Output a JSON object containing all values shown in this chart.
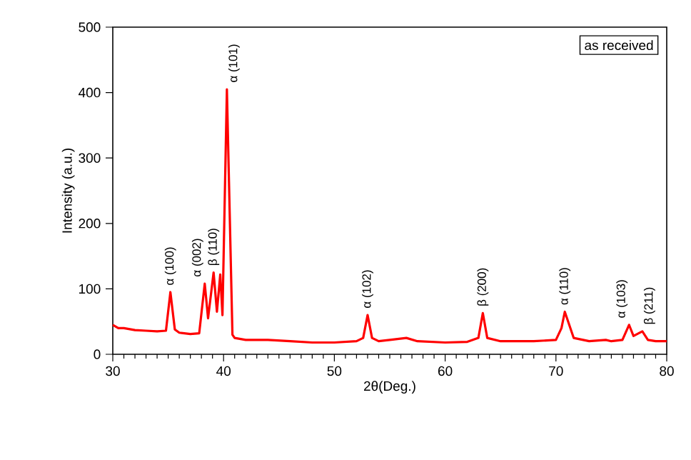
{
  "chart_data": {
    "type": "line",
    "xlabel": "2θ(Deg.)",
    "ylabel": "Intensity (a.u.)",
    "xlim": [
      30,
      80
    ],
    "xticks": [
      30,
      40,
      50,
      60,
      70,
      80
    ],
    "ylim": [
      0,
      500
    ],
    "yticks": [
      0,
      100,
      200,
      300,
      400,
      500
    ],
    "series": [
      {
        "color": "#ff0000",
        "x": [
          30,
          30.5,
          31,
          32,
          33,
          34,
          34.8,
          35.2,
          35.6,
          36,
          37,
          37.8,
          38.3,
          38.6,
          39.1,
          39.4,
          39.7,
          39.9,
          40.3,
          40.8,
          41,
          42,
          44,
          46,
          48,
          50,
          52,
          52.6,
          53,
          53.4,
          54,
          55,
          56.5,
          57.5,
          60,
          62,
          63,
          63.4,
          63.8,
          65,
          68,
          70,
          70.5,
          70.8,
          71.2,
          71.6,
          73,
          74.5,
          75,
          76,
          76.6,
          77,
          77.8,
          78.3,
          79,
          80
        ],
        "values": [
          45,
          40,
          40,
          37,
          36,
          35,
          36,
          95,
          38,
          33,
          31,
          32,
          108,
          55,
          125,
          65,
          122,
          60,
          405,
          30,
          25,
          22,
          22,
          20,
          18,
          18,
          20,
          25,
          60,
          25,
          20,
          22,
          25,
          20,
          18,
          19,
          25,
          63,
          25,
          20,
          20,
          22,
          40,
          65,
          45,
          25,
          20,
          22,
          20,
          22,
          45,
          28,
          35,
          22,
          20,
          20
        ]
      }
    ],
    "annotations": [
      "as received",
      {
        "text": "α (100)",
        "x": 35.2,
        "y": 95
      },
      {
        "text": "α (002)",
        "x": 38.3,
        "y": 108
      },
      {
        "text": "β (110)",
        "x": 39.1,
        "y": 125
      },
      {
        "text": "α (101)",
        "x": 40.3,
        "y": 405
      },
      {
        "text": "α (102)",
        "x": 53,
        "y": 60
      },
      {
        "text": "β (200)",
        "x": 63.4,
        "y": 63
      },
      {
        "text": "α (110)",
        "x": 70.8,
        "y": 65
      },
      {
        "text": "α (103)",
        "x": 76.6,
        "y": 45
      },
      {
        "text": "β (211)",
        "x": 77.8,
        "y": 35
      }
    ]
  }
}
